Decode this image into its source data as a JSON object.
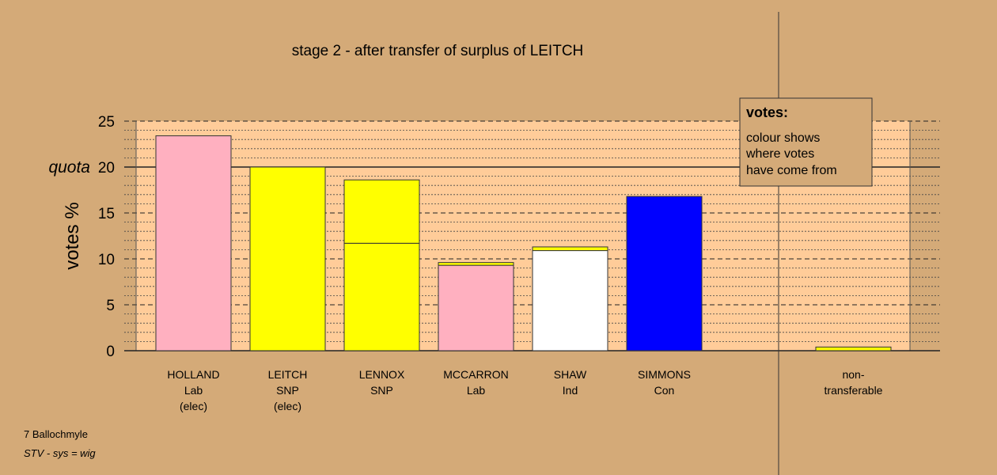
{
  "chart_data": {
    "type": "bar",
    "title": "stage 2 - after transfer of surplus of LEITCH",
    "ylabel": "votes %",
    "ylim": [
      0,
      25
    ],
    "yticks": [
      0,
      5,
      10,
      15,
      20,
      25
    ],
    "quota": 20,
    "quota_label": "quota",
    "candidates": [
      {
        "lines": [
          "HOLLAND",
          "Lab",
          "(elec)"
        ],
        "segments": [
          {
            "value": 23.4,
            "color": "#ffb0c0"
          }
        ]
      },
      {
        "lines": [
          "LEITCH",
          "SNP",
          "(elec)"
        ],
        "segments": [
          {
            "value": 20.0,
            "color": "#ffff00"
          }
        ]
      },
      {
        "lines": [
          "LENNOX",
          "SNP"
        ],
        "segments": [
          {
            "value": 11.7,
            "color": "#ffff00"
          },
          {
            "value": 6.9,
            "color": "#ffff00"
          }
        ]
      },
      {
        "lines": [
          "MCCARRON",
          "Lab"
        ],
        "segments": [
          {
            "value": 9.3,
            "color": "#ffb0c0"
          },
          {
            "value": 0.3,
            "color": "#ffff00"
          }
        ]
      },
      {
        "lines": [
          "SHAW",
          "Ind"
        ],
        "segments": [
          {
            "value": 10.9,
            "color": "#ffffff"
          },
          {
            "value": 0.4,
            "color": "#ffff00"
          }
        ]
      },
      {
        "lines": [
          "SIMMONS",
          "Con"
        ],
        "segments": [
          {
            "value": 16.8,
            "color": "#0000ff"
          }
        ]
      }
    ],
    "nontransferable": {
      "lines": [
        "non-",
        "transferable"
      ],
      "value": 0.4,
      "color": "#ffff00"
    },
    "legend": {
      "title": "votes:",
      "lines": [
        "colour shows",
        "where votes",
        "have come from"
      ]
    },
    "colors": {
      "background": "#d4aa78",
      "plot_area": "#ffcc99"
    }
  },
  "footer": {
    "ward": "7 Ballochmyle",
    "system": "STV - sys = wig"
  }
}
